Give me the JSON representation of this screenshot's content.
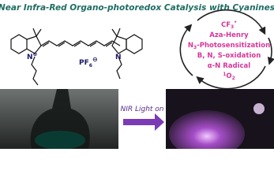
{
  "header": {
    "title": "Near Infra-Red Organo-photoredox Catalysis with Cyanines"
  },
  "molecule": {
    "left_nitrogen": "N",
    "left_charge": "⊕",
    "right_nitrogen": "N",
    "counterion": "PF",
    "counterion_sub": "6",
    "counterion_charge": "⊖"
  },
  "cycle": {
    "reactions": [
      {
        "base": "CF",
        "sub": "3",
        "sup": "•"
      },
      {
        "base": "Aza-Henry"
      },
      {
        "base": "N",
        "sub": "3",
        "rest": "-Photosensitization"
      },
      {
        "base": "B, N, S-oxidation"
      },
      {
        "base": "α-N Radical"
      },
      {
        "pre": "1",
        "base": "O",
        "sub": "2"
      }
    ]
  },
  "arrow_label": "NIR Light on"
}
